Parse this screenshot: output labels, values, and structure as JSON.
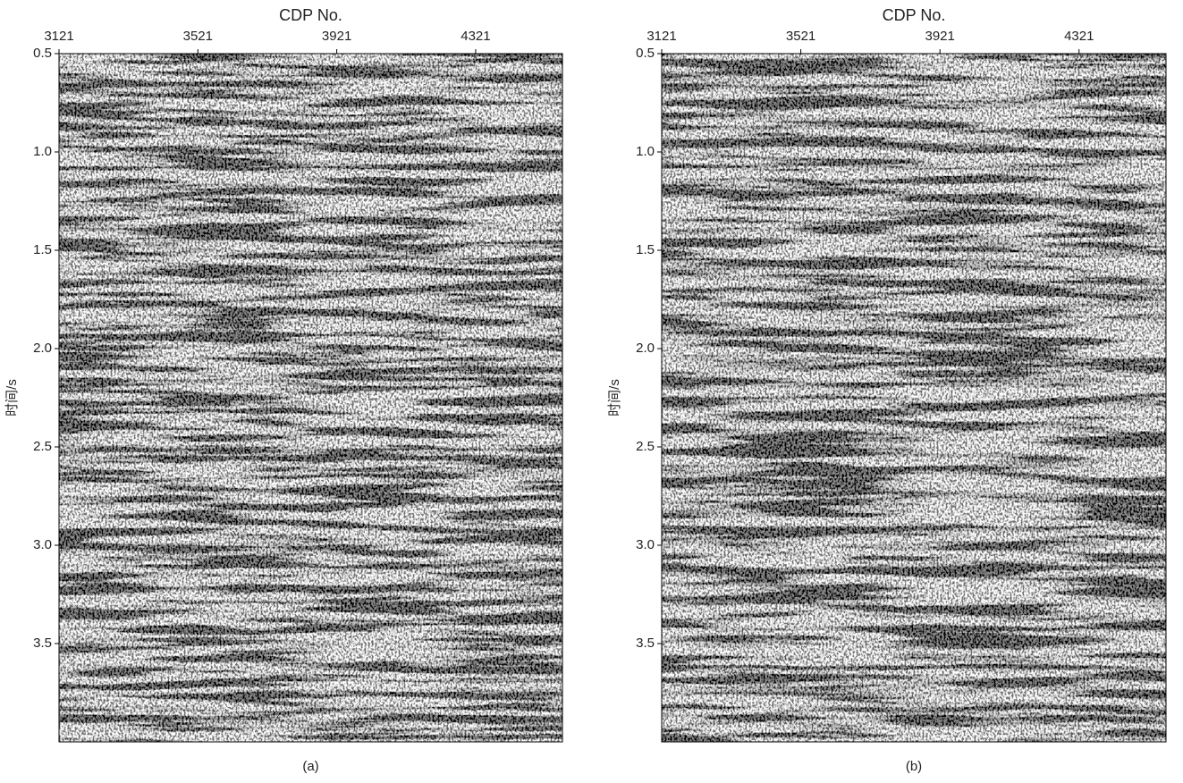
{
  "chart_data": [
    {
      "type": "image",
      "title": "CDP No.",
      "y_label": "时间/s",
      "caption": "(a)",
      "xlim": [
        3121,
        4571
      ],
      "xticks": [
        3121,
        3521,
        3921,
        4321
      ],
      "ylim": [
        4.0,
        0.5
      ],
      "yticks": [
        0.5,
        {
          "value": 1.0,
          "label": "1.0"
        },
        1.5,
        {
          "value": 2.0,
          "label": "2.0"
        },
        2.5,
        {
          "value": 3.0,
          "label": "3.0"
        },
        3.5
      ]
    },
    {
      "type": "image",
      "title": "CDP No.",
      "y_label": "时间/s",
      "caption": "(b)",
      "xlim": [
        3121,
        4571
      ],
      "xticks": [
        3121,
        3521,
        3921,
        4321
      ],
      "ylim": [
        4.0,
        0.5
      ],
      "yticks": [
        0.5,
        {
          "value": 1.0,
          "label": "1.0"
        },
        1.5,
        {
          "value": 2.0,
          "label": "2.0"
        },
        2.5,
        {
          "value": 3.0,
          "label": "3.0"
        },
        3.5
      ]
    }
  ]
}
